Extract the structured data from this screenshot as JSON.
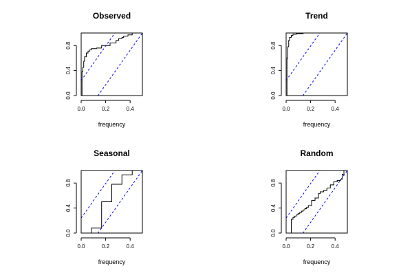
{
  "chart_data": [
    {
      "type": "line",
      "title": "Observed",
      "xlabel": "frequency",
      "ylabel": "",
      "xlim": [
        0,
        0.5
      ],
      "ylim": [
        0,
        1
      ],
      "xticks": [
        "0.0",
        "0.2",
        "0.4"
      ],
      "yticks": [
        "0.0",
        "0.4",
        "0.8"
      ],
      "grid": false,
      "series": [
        {
          "style": "step",
          "color": "#000000",
          "x": [
            0.0,
            0.007,
            0.014,
            0.021,
            0.028,
            0.042,
            0.056,
            0.069,
            0.083,
            0.125,
            0.167,
            0.236,
            0.285,
            0.306,
            0.333,
            0.347,
            0.382,
            0.417,
            0.5
          ],
          "y": [
            0.0,
            0.38,
            0.45,
            0.55,
            0.62,
            0.68,
            0.71,
            0.73,
            0.75,
            0.76,
            0.8,
            0.84,
            0.88,
            0.91,
            0.93,
            0.95,
            0.97,
            1.0,
            1.0
          ]
        },
        {
          "style": "dashed",
          "color": "#0000ff",
          "x": [
            0.0,
            0.5
          ],
          "y": [
            0.24,
            1.62
          ]
        },
        {
          "style": "dashed",
          "color": "#0000ff",
          "x": [
            0.0,
            0.5
          ],
          "y": [
            -0.38,
            1.0
          ]
        }
      ]
    },
    {
      "type": "line",
      "title": "Trend",
      "xlabel": "frequency",
      "ylabel": "",
      "xlim": [
        0,
        0.5
      ],
      "ylim": [
        0,
        1
      ],
      "xticks": [
        "0.0",
        "0.2",
        "0.4"
      ],
      "yticks": [
        "0.0",
        "0.4",
        "0.8"
      ],
      "grid": false,
      "series": [
        {
          "style": "step",
          "color": "#000000",
          "x": [
            0.0,
            0.007,
            0.014,
            0.021,
            0.028,
            0.042,
            0.056,
            0.083,
            0.139,
            0.5
          ],
          "y": [
            0.0,
            0.6,
            0.78,
            0.88,
            0.93,
            0.96,
            0.98,
            0.99,
            1.0,
            1.0
          ]
        },
        {
          "style": "dashed",
          "color": "#0000ff",
          "x": [
            0.0,
            0.5
          ],
          "y": [
            0.24,
            1.62
          ]
        },
        {
          "style": "dashed",
          "color": "#0000ff",
          "x": [
            0.0,
            0.5
          ],
          "y": [
            -0.38,
            1.0
          ]
        }
      ]
    },
    {
      "type": "line",
      "title": "Seasonal",
      "xlabel": "frequency",
      "ylabel": "",
      "xlim": [
        0,
        0.5
      ],
      "ylim": [
        0,
        1
      ],
      "xticks": [
        "0.0",
        "0.2",
        "0.4"
      ],
      "yticks": [
        "0.0",
        "0.4",
        "0.8"
      ],
      "grid": false,
      "series": [
        {
          "style": "step",
          "color": "#000000",
          "x": [
            0.0,
            0.083,
            0.167,
            0.25,
            0.333,
            0.417,
            0.5
          ],
          "y": [
            0.0,
            0.08,
            0.5,
            0.78,
            0.93,
            1.0,
            1.0
          ]
        },
        {
          "style": "dashed",
          "color": "#0000ff",
          "x": [
            0.0,
            0.5
          ],
          "y": [
            0.24,
            1.62
          ]
        },
        {
          "style": "dashed",
          "color": "#0000ff",
          "x": [
            0.0,
            0.5
          ],
          "y": [
            -0.38,
            1.0
          ]
        }
      ]
    },
    {
      "type": "line",
      "title": "Random",
      "xlabel": "frequency",
      "ylabel": "",
      "xlim": [
        0,
        0.5
      ],
      "ylim": [
        0,
        1
      ],
      "xticks": [
        "0.0",
        "0.2",
        "0.4"
      ],
      "yticks": [
        "0.0",
        "0.4",
        "0.8"
      ],
      "grid": false,
      "series": [
        {
          "style": "step",
          "color": "#000000",
          "x": [
            0.0,
            0.042,
            0.056,
            0.069,
            0.083,
            0.097,
            0.111,
            0.125,
            0.139,
            0.153,
            0.167,
            0.181,
            0.208,
            0.236,
            0.264,
            0.278,
            0.306,
            0.333,
            0.361,
            0.389,
            0.417,
            0.444,
            0.458,
            0.472,
            0.5
          ],
          "y": [
            0.0,
            0.22,
            0.25,
            0.27,
            0.29,
            0.31,
            0.33,
            0.35,
            0.37,
            0.39,
            0.41,
            0.44,
            0.52,
            0.56,
            0.63,
            0.66,
            0.68,
            0.72,
            0.77,
            0.82,
            0.84,
            0.86,
            0.94,
            1.0,
            1.0
          ]
        },
        {
          "style": "dashed",
          "color": "#0000ff",
          "x": [
            0.0,
            0.5
          ],
          "y": [
            0.24,
            1.62
          ]
        },
        {
          "style": "dashed",
          "color": "#0000ff",
          "x": [
            0.0,
            0.5
          ],
          "y": [
            -0.38,
            1.0
          ]
        }
      ]
    }
  ]
}
